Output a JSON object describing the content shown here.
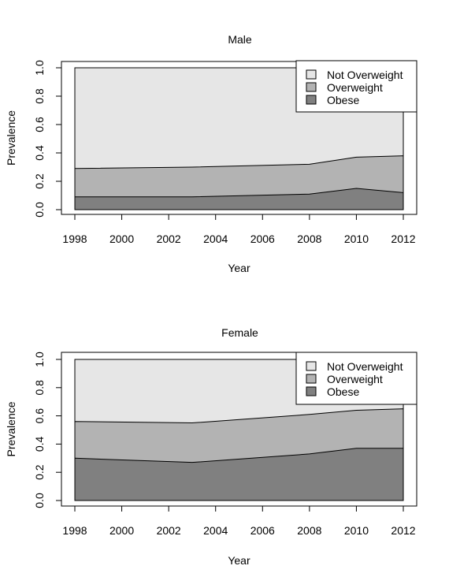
{
  "chart_data": [
    {
      "type": "area",
      "stacked": true,
      "title": "Male",
      "xlabel": "Year",
      "ylabel": "Prevalence",
      "xlim": [
        1998,
        2012
      ],
      "ylim": [
        0,
        1
      ],
      "x_ticks": [
        "1998",
        "2000",
        "2002",
        "2004",
        "2006",
        "2008",
        "2010",
        "2012"
      ],
      "y_ticks": [
        "0.0",
        "0.2",
        "0.4",
        "0.6",
        "0.8",
        "1.0"
      ],
      "x": [
        1998,
        2003,
        2008,
        2010,
        2012
      ],
      "series": [
        {
          "name": "Obese",
          "values": [
            0.09,
            0.09,
            0.11,
            0.15,
            0.12
          ],
          "color": "#808080"
        },
        {
          "name": "Overweight",
          "values": [
            0.29,
            0.3,
            0.32,
            0.37,
            0.38
          ],
          "color": "#b3b3b3"
        },
        {
          "name": "Not Overweight",
          "values": [
            1.0,
            1.0,
            1.0,
            1.0,
            1.0
          ],
          "color": "#e6e6e6"
        }
      ],
      "legend": {
        "position": "top-right",
        "entries": [
          "Not Overweight",
          "Overweight",
          "Obese"
        ]
      },
      "grid": false
    },
    {
      "type": "area",
      "stacked": true,
      "title": "Female",
      "xlabel": "Year",
      "ylabel": "Prevalence",
      "xlim": [
        1998,
        2012
      ],
      "ylim": [
        0,
        1
      ],
      "x_ticks": [
        "1998",
        "2000",
        "2002",
        "2004",
        "2006",
        "2008",
        "2010",
        "2012"
      ],
      "y_ticks": [
        "0.0",
        "0.2",
        "0.4",
        "0.6",
        "0.8",
        "1.0"
      ],
      "x": [
        1998,
        2003,
        2008,
        2010,
        2012
      ],
      "series": [
        {
          "name": "Obese",
          "values": [
            0.3,
            0.27,
            0.33,
            0.37,
            0.37
          ],
          "color": "#808080"
        },
        {
          "name": "Overweight",
          "values": [
            0.56,
            0.55,
            0.61,
            0.64,
            0.65
          ],
          "color": "#b3b3b3"
        },
        {
          "name": "Not Overweight",
          "values": [
            1.0,
            1.0,
            1.0,
            1.0,
            1.0
          ],
          "color": "#e6e6e6"
        }
      ],
      "legend": {
        "position": "top-right",
        "entries": [
          "Not Overweight",
          "Overweight",
          "Obese"
        ]
      },
      "grid": false
    }
  ]
}
